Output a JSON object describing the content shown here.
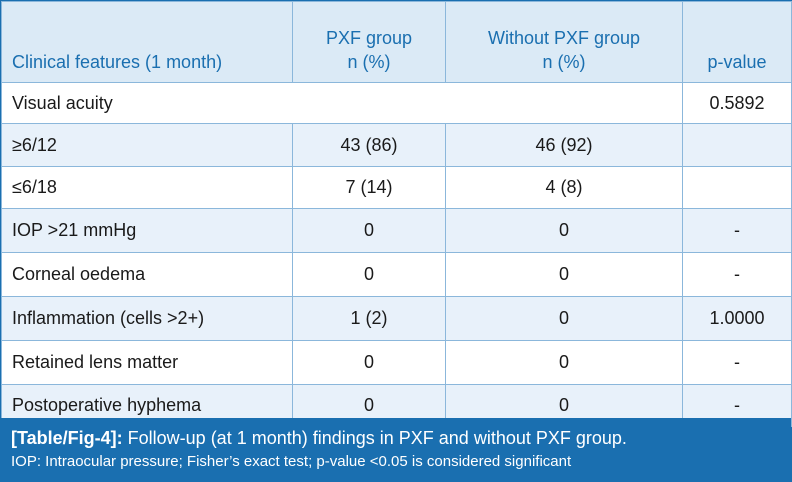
{
  "table": {
    "headers": [
      {
        "line1": "Clinical features (1 month)",
        "line2": ""
      },
      {
        "line1": "PXF group",
        "line2": "n (%)"
      },
      {
        "line1": "Without PXF group",
        "line2": "n (%)"
      },
      {
        "line1": "p-value",
        "line2": ""
      }
    ],
    "rows": [
      {
        "feature": "Visual acuity",
        "pxf": "",
        "without_pxf": "",
        "p_value": "0.5892"
      },
      {
        "feature": "≥6/12",
        "pxf": "43 (86)",
        "without_pxf": "46 (92)",
        "p_value": ""
      },
      {
        "feature": "≤6/18",
        "pxf": "7 (14)",
        "without_pxf": "4 (8)",
        "p_value": ""
      },
      {
        "feature": "IOP >21 mmHg",
        "pxf": "0",
        "without_pxf": "0",
        "p_value": "-"
      },
      {
        "feature": "Corneal oedema",
        "pxf": "0",
        "without_pxf": "0",
        "p_value": "-"
      },
      {
        "feature": "Inflammation (cells >2+)",
        "pxf": "1 (2)",
        "without_pxf": "0",
        "p_value": "1.0000"
      },
      {
        "feature": "Retained lens matter",
        "pxf": "0",
        "without_pxf": "0",
        "p_value": "-"
      },
      {
        "feature": "Postoperative hyphema",
        "pxf": "0",
        "without_pxf": "0",
        "p_value": "-"
      }
    ]
  },
  "caption": {
    "tag": "[Table/Fig-4]:",
    "title": " Follow-up (at 1 month) findings in PXF and without PXF group.",
    "note": "IOP: Intraocular pressure; Fisher’s exact test; p-value <0.05 is considered significant"
  },
  "colors": {
    "accent": "#1a6fb0",
    "header_bg": "#dbeaf6",
    "row_tint": "#e8f1fa",
    "border": "#8bb7db"
  }
}
